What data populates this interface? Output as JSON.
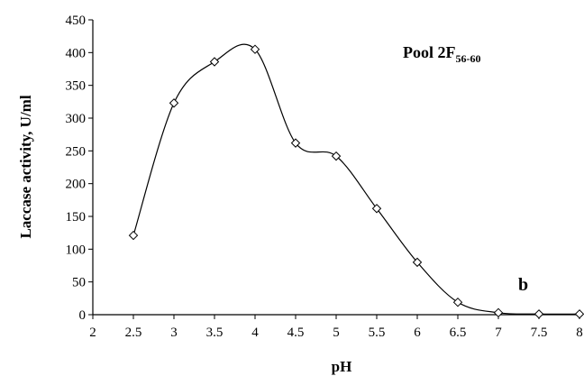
{
  "chart_data": {
    "type": "line",
    "xlabel": "pH",
    "ylabel": "Laccase activity, U/ml",
    "xlim": [
      2,
      8
    ],
    "ylim": [
      0,
      450
    ],
    "x_ticks": [
      "2",
      "2.5",
      "3",
      "3.5",
      "4",
      "4.5",
      "5",
      "5.5",
      "6",
      "6.5",
      "7",
      "7.5",
      "8"
    ],
    "y_ticks": [
      "0",
      "50",
      "100",
      "150",
      "200",
      "250",
      "300",
      "350",
      "400",
      "450"
    ],
    "grid": false,
    "marker": "diamond",
    "series": [
      {
        "x": [
          2.5,
          3,
          3.5,
          4,
          4.5,
          5,
          5.5,
          6,
          6.5,
          7,
          7.5,
          8
        ],
        "y": [
          121,
          323,
          386,
          405,
          262,
          242,
          162,
          80,
          19,
          3,
          1,
          1
        ]
      }
    ],
    "annotations": {
      "pool_label": "Pool 2F",
      "pool_subscript": "56-60",
      "panel_letter": "b"
    }
  }
}
